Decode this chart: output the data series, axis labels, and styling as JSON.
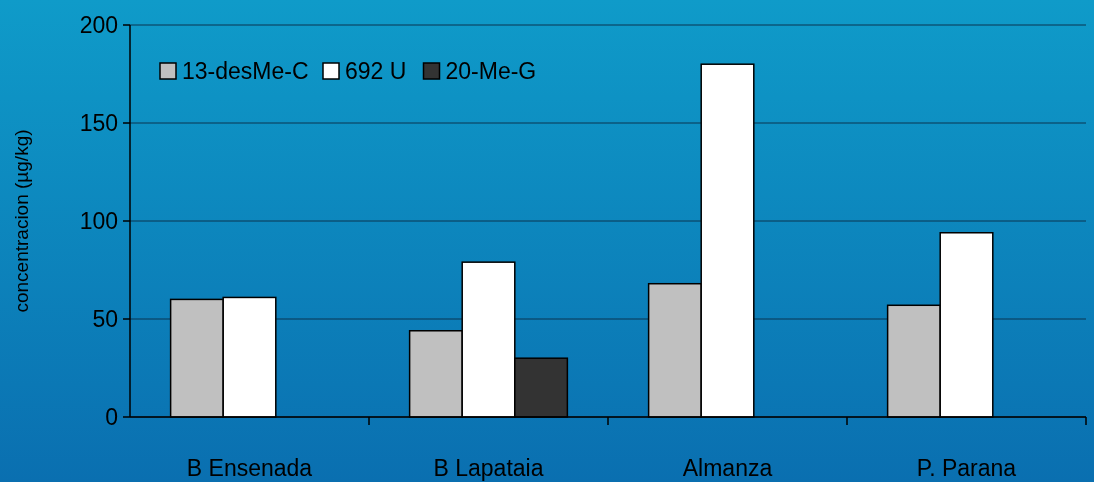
{
  "chart_data": {
    "type": "bar",
    "ylabel": "concentracion (µg/kg)",
    "categories": [
      "B Ensenada",
      "B Lapataia",
      "Almanza",
      "P. Parana"
    ],
    "series": [
      {
        "name": "13-desMe-C",
        "color": "#c0c0c0",
        "values": [
          60,
          44,
          68,
          57
        ]
      },
      {
        "name": "692 U",
        "color": "#ffffff",
        "values": [
          61,
          79,
          180,
          94
        ]
      },
      {
        "name": "20-Me-G",
        "color": "#333333",
        "values": [
          null,
          30,
          null,
          null
        ]
      }
    ],
    "ylim": [
      0,
      200
    ],
    "yticks": [
      0,
      50,
      100,
      150,
      200
    ],
    "grid": "y",
    "legend": "top left"
  }
}
